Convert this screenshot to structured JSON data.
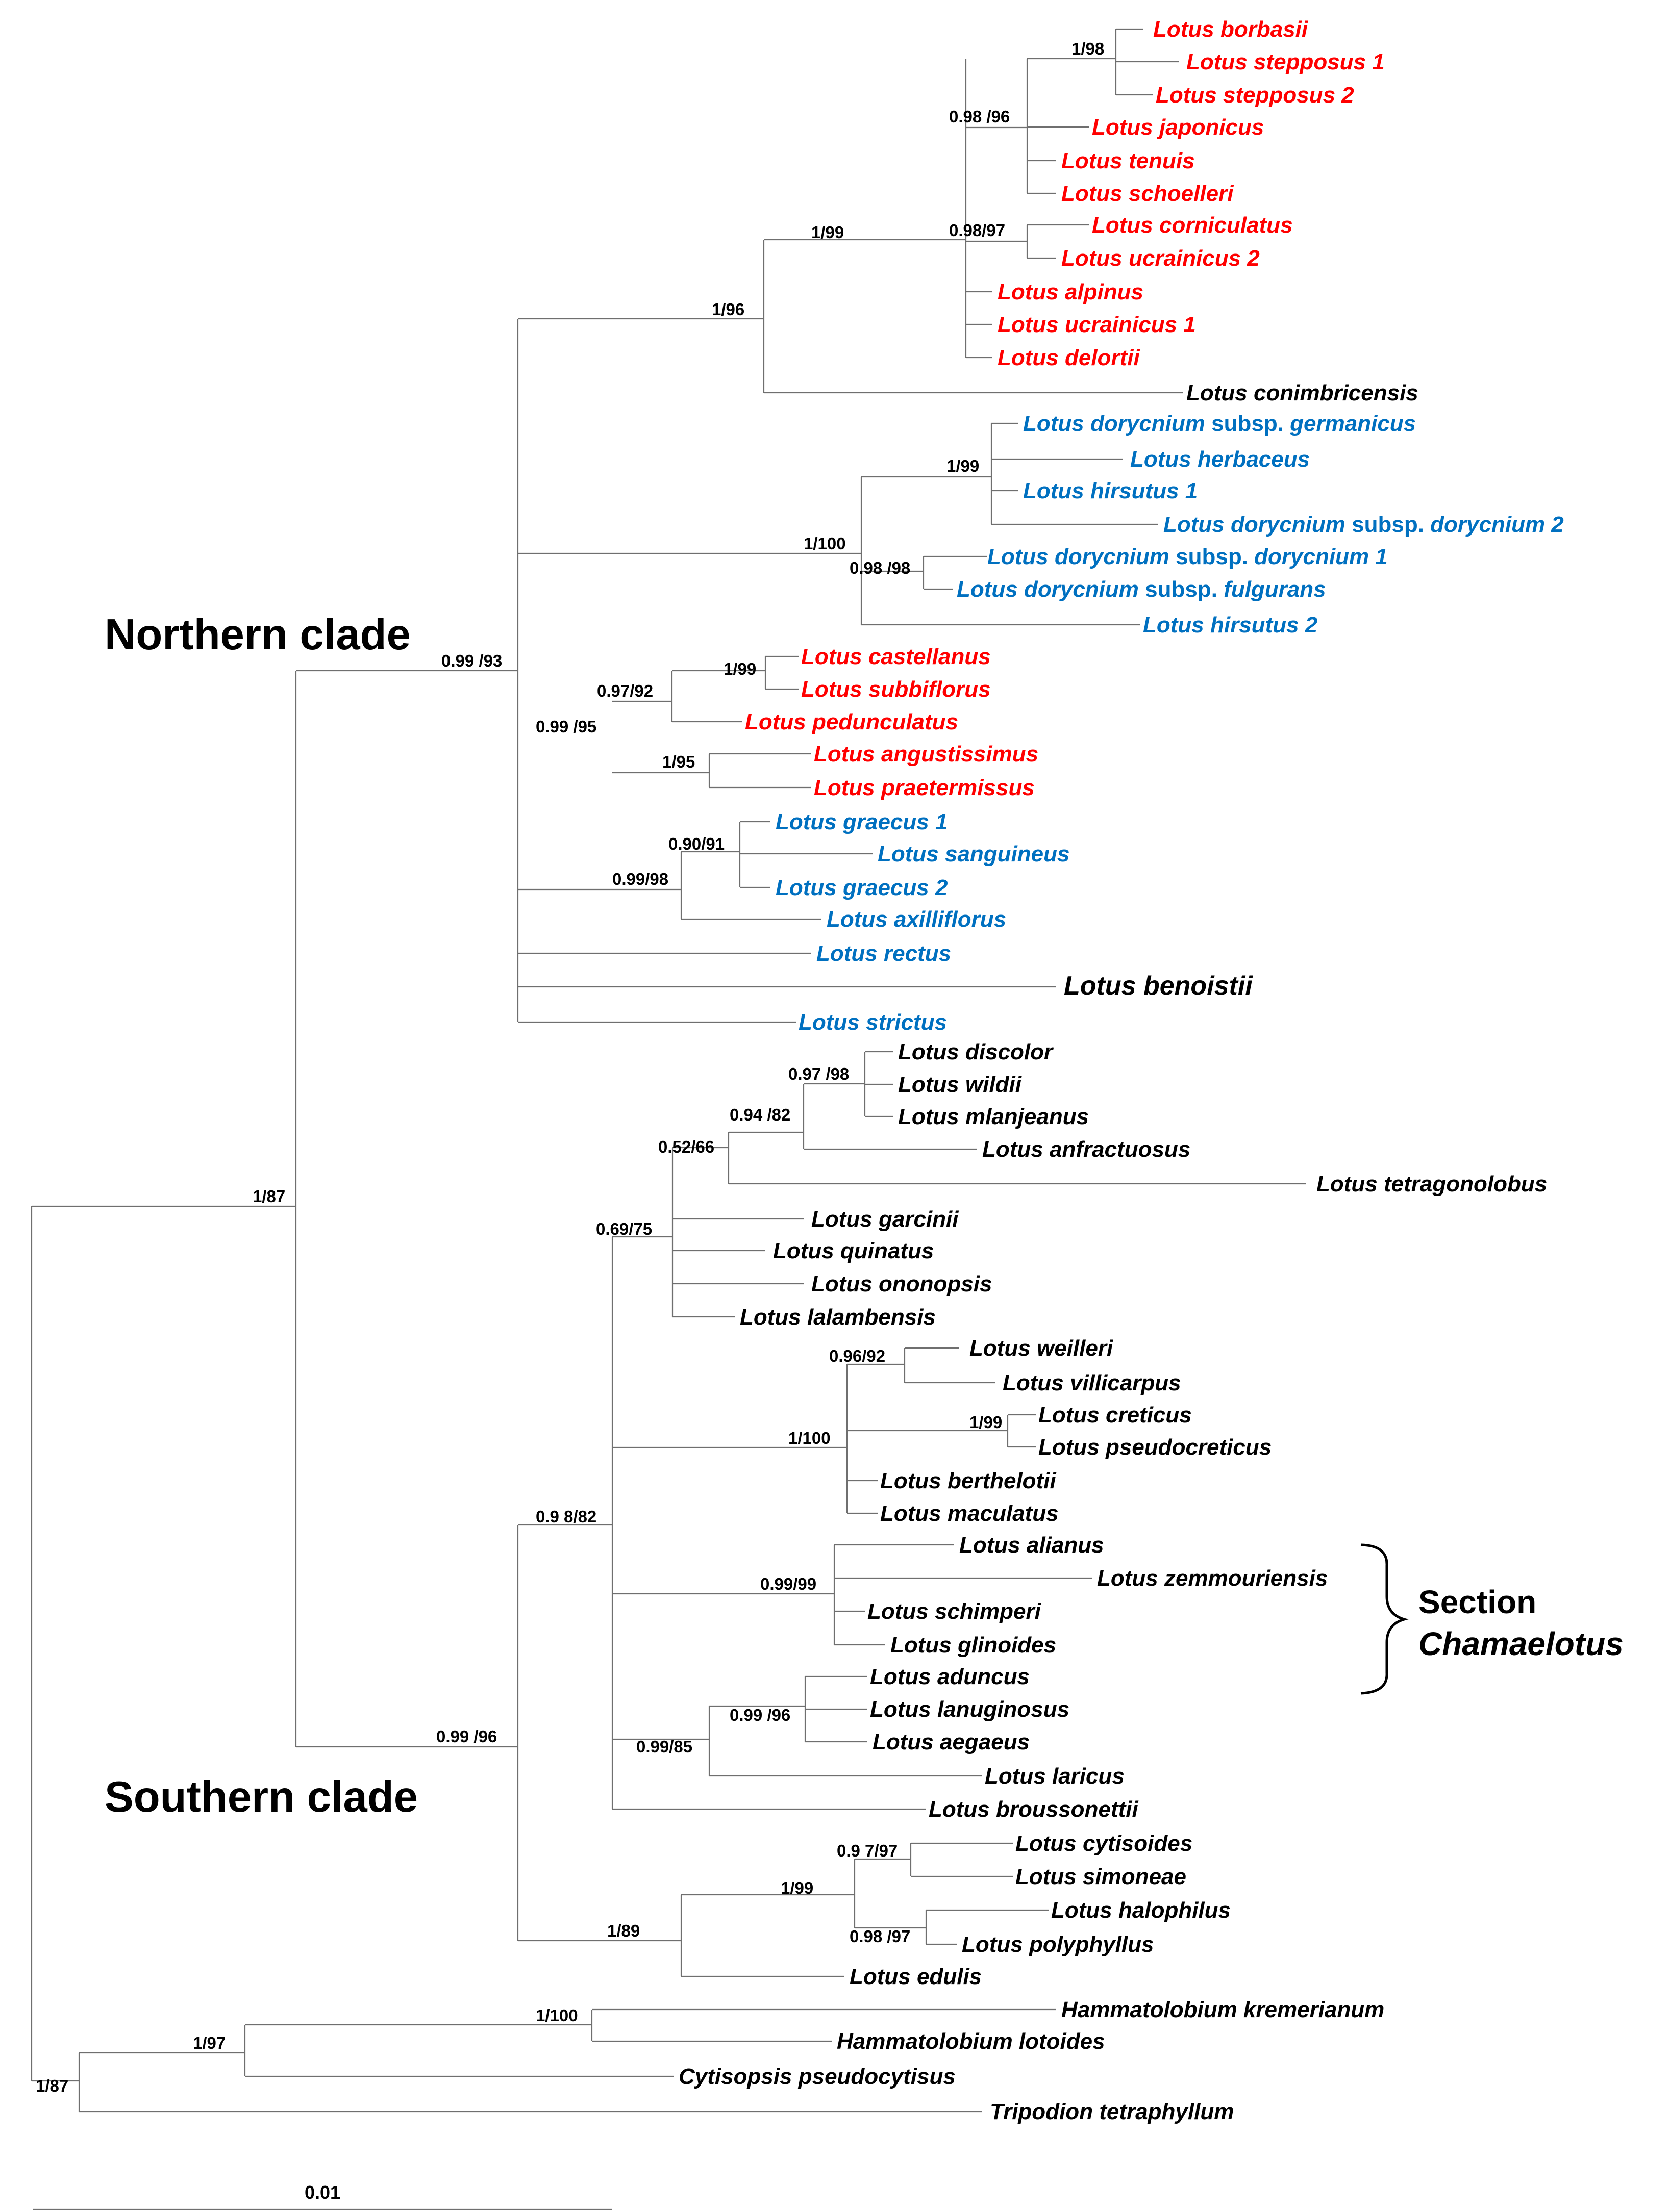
{
  "colors": {
    "red": "#ff0000",
    "blue": "#0070c0",
    "black": "#000000",
    "branch": "#6f6f6f"
  },
  "labels": {
    "northern": "Northern clade",
    "southern": "Southern clade",
    "section_line1": "Section",
    "section_line2": "Chamaelotus",
    "scale": "0.01"
  },
  "tips": [
    {
      "id": "borbasii",
      "genus": "Lotus",
      "rest": " borbasii",
      "color": "red"
    },
    {
      "id": "stepposus1",
      "genus": "Lotus",
      "rest": " stepposus 1",
      "color": "red"
    },
    {
      "id": "stepposus2",
      "genus": "Lotus",
      "rest": " stepposus 2",
      "color": "red"
    },
    {
      "id": "japonicus",
      "genus": "Lotus",
      "rest": " japonicus",
      "color": "red"
    },
    {
      "id": "tenuis",
      "genus": "Lotus",
      "rest": " tenuis",
      "color": "red"
    },
    {
      "id": "schoelleri",
      "genus": "Lotus",
      "rest": " schoelleri",
      "color": "red"
    },
    {
      "id": "corniculatus",
      "genus": "Lotus",
      "rest": " corniculatus",
      "color": "red"
    },
    {
      "id": "ucrainicus2",
      "genus": "Lotus",
      "rest": " ucrainicus 2",
      "color": "red"
    },
    {
      "id": "alpinus",
      "genus": "Lotus",
      "rest": " alpinus",
      "color": "red"
    },
    {
      "id": "ucrainicus1",
      "genus": "Lotus",
      "rest": " ucrainicus 1",
      "color": "red"
    },
    {
      "id": "delortii",
      "genus": "Lotus",
      "rest": " delortii",
      "color": "red"
    },
    {
      "id": "conimbricensis",
      "genus": "Lotus",
      "rest": " conimbricensis",
      "color": "black"
    },
    {
      "id": "dor_germanicus",
      "genus": "Lotus dorycnium",
      "mid": " subsp.",
      "rest": " germanicus",
      "color": "blue"
    },
    {
      "id": "herbaceus",
      "genus": "Lotus",
      "rest": " herbaceus",
      "color": "blue"
    },
    {
      "id": "hirsutus1",
      "genus": "Lotus",
      "rest": " hirsutus 1",
      "color": "blue"
    },
    {
      "id": "dor_dor2",
      "genus": "Lotus dorycnium",
      "mid": " subsp.",
      "rest": " dorycnium 2",
      "color": "blue"
    },
    {
      "id": "dor_dor1",
      "genus": "Lotus dorycnium",
      "mid": " subsp.",
      "rest": " dorycnium 1",
      "color": "blue"
    },
    {
      "id": "dor_fulgurans",
      "genus": "Lotus dorycnium",
      "mid": " subsp.",
      "rest": " fulgurans",
      "color": "blue"
    },
    {
      "id": "hirsutus2",
      "genus": "Lotus",
      "rest": " hirsutus 2",
      "color": "blue"
    },
    {
      "id": "castellanus",
      "genus": "Lotus",
      "rest": " castellanus",
      "color": "red"
    },
    {
      "id": "subbiflorus",
      "genus": "Lotus",
      "rest": " subbiflorus",
      "color": "red"
    },
    {
      "id": "pedunculatus",
      "genus": "Lotus",
      "rest": " pedunculatus",
      "color": "red"
    },
    {
      "id": "angustissimus",
      "genus": "Lotus",
      "rest": " angustissimus",
      "color": "red"
    },
    {
      "id": "praetermissus",
      "genus": "Lotus",
      "rest": " praetermissus",
      "color": "red"
    },
    {
      "id": "graecus1",
      "genus": "Lotus",
      "rest": " graecus 1",
      "color": "blue"
    },
    {
      "id": "sanguineus",
      "genus": "Lotus",
      "rest": " sanguineus",
      "color": "blue"
    },
    {
      "id": "graecus2",
      "genus": "Lotus",
      "rest": " graecus 2",
      "color": "blue"
    },
    {
      "id": "axilliflorus",
      "genus": "Lotus",
      "rest": " axilliflorus",
      "color": "blue"
    },
    {
      "id": "rectus",
      "genus": "Lotus",
      "rest": " rectus",
      "color": "blue"
    },
    {
      "id": "benoistii",
      "genus": "Lotus",
      "rest": " benoistii",
      "color": "black"
    },
    {
      "id": "strictus",
      "genus": "Lotus",
      "rest": " strictus",
      "color": "blue"
    },
    {
      "id": "discolor",
      "genus": "Lotus",
      "rest": " discolor",
      "color": "black"
    },
    {
      "id": "wildii",
      "genus": "Lotus",
      "rest": " wildii",
      "color": "black"
    },
    {
      "id": "mlanjeanus",
      "genus": "Lotus",
      "rest": " mlanjeanus",
      "color": "black"
    },
    {
      "id": "anfractuosus",
      "genus": "Lotus",
      "rest": " anfractuosus",
      "color": "black"
    },
    {
      "id": "tetragonolobus",
      "genus": "Lotus",
      "rest": " tetragonolobus",
      "color": "black"
    },
    {
      "id": "garcinii",
      "genus": "Lotus",
      "rest": " garcinii",
      "color": "black"
    },
    {
      "id": "quinatus",
      "genus": "Lotus",
      "rest": " quinatus",
      "color": "black"
    },
    {
      "id": "ononopsis",
      "genus": "Lotus",
      "rest": " ononopsis",
      "color": "black"
    },
    {
      "id": "lalambensis",
      "genus": "Lotus",
      "rest": " lalambensis",
      "color": "black"
    },
    {
      "id": "weilleri",
      "genus": "Lotus",
      "rest": " weilleri",
      "color": "black"
    },
    {
      "id": "villicarpus",
      "genus": "Lotus",
      "rest": " villicarpus",
      "color": "black"
    },
    {
      "id": "creticus",
      "genus": "Lotus",
      "rest": " creticus",
      "color": "black"
    },
    {
      "id": "pseudocreticus",
      "genus": "Lotus",
      "rest": " pseudocreticus",
      "color": "black"
    },
    {
      "id": "berthelotii",
      "genus": "Lotus",
      "rest": " berthelotii",
      "color": "black"
    },
    {
      "id": "maculatus",
      "genus": "Lotus",
      "rest": " maculatus",
      "color": "black"
    },
    {
      "id": "alianus",
      "genus": "Lotus",
      "rest": " alianus",
      "color": "black"
    },
    {
      "id": "zemmouriensis",
      "genus": "Lotus",
      "rest": " zemmouriensis",
      "color": "black"
    },
    {
      "id": "schimperi",
      "genus": "Lotus",
      "rest": " schimperi",
      "color": "black"
    },
    {
      "id": "glinoides",
      "genus": "Lotus",
      "rest": " glinoides",
      "color": "black"
    },
    {
      "id": "aduncus",
      "genus": "Lotus",
      "rest": " aduncus",
      "color": "black"
    },
    {
      "id": "lanuginosus",
      "genus": "Lotus",
      "rest": " lanuginosus",
      "color": "black"
    },
    {
      "id": "aegaeus",
      "genus": "Lotus",
      "rest": " aegaeus",
      "color": "black"
    },
    {
      "id": "laricus",
      "genus": "Lotus",
      "rest": " laricus",
      "color": "black"
    },
    {
      "id": "broussonettii",
      "genus": "Lotus",
      "rest": " broussonettii",
      "color": "black"
    },
    {
      "id": "cytisoides",
      "genus": "Lotus",
      "rest": " cytisoides",
      "color": "black"
    },
    {
      "id": "simoneae",
      "genus": "Lotus",
      "rest": " simoneae",
      "color": "black"
    },
    {
      "id": "halophilus",
      "genus": "Lotus",
      "rest": " halophilus",
      "color": "black"
    },
    {
      "id": "polyphyllus",
      "genus": "Lotus",
      "rest": " polyphyllus",
      "color": "black"
    },
    {
      "id": "edulis",
      "genus": "Lotus",
      "rest": " edulis",
      "color": "black"
    },
    {
      "id": "hkremerianum",
      "genus": "Hammatolobium",
      "rest": " kremerianum",
      "color": "black"
    },
    {
      "id": "hlotoides",
      "genus": "Hammatolobium",
      "rest": " lotoides",
      "color": "black"
    },
    {
      "id": "cytisopsis",
      "genus": "Cytisopsis",
      "rest": " pseudocytisus",
      "color": "black"
    },
    {
      "id": "tripodion",
      "genus": "Tripodion",
      "rest": " tetraphyllum",
      "color": "black"
    }
  ],
  "supports": [
    {
      "id": "s_borb_step",
      "text": "1/98"
    },
    {
      "id": "s_0_98_96",
      "text": "0.98 /96"
    },
    {
      "id": "s_1_99a",
      "text": "1/99"
    },
    {
      "id": "s_0_98_97",
      "text": "0.98/97"
    },
    {
      "id": "s_1_96",
      "text": "1/96"
    },
    {
      "id": "s_1_99b",
      "text": "1/99"
    },
    {
      "id": "s_1_100a",
      "text": "1/100"
    },
    {
      "id": "s_0_98_98a",
      "text": "0.98 /98"
    },
    {
      "id": "s_0_99_93",
      "text": "0.99 /93"
    },
    {
      "id": "s_1_99c",
      "text": "1/99"
    },
    {
      "id": "s_0_97_92",
      "text": "0.97/92"
    },
    {
      "id": "s_0_99_95",
      "text": "0.99 /95"
    },
    {
      "id": "s_1_95",
      "text": "1/95"
    },
    {
      "id": "s_0_90_91",
      "text": "0.90/91"
    },
    {
      "id": "s_0_99_98",
      "text": "0.99/98"
    },
    {
      "id": "s_0_97_98",
      "text": "0.97 /98"
    },
    {
      "id": "s_0_94_82",
      "text": "0.94 /82"
    },
    {
      "id": "s_0_52_66",
      "text": "0.52/66"
    },
    {
      "id": "s_0_69_75",
      "text": "0.69/75"
    },
    {
      "id": "s_1_87a",
      "text": "1/87"
    },
    {
      "id": "s_0_96_92",
      "text": "0.96/92"
    },
    {
      "id": "s_1_99d",
      "text": "1/99"
    },
    {
      "id": "s_1_100b",
      "text": "1/100"
    },
    {
      "id": "s_0_98_82",
      "text": "0.9 8/82"
    },
    {
      "id": "s_0_99_99",
      "text": "0.99/99"
    },
    {
      "id": "s_0_99_96a",
      "text": "0.99 /96"
    },
    {
      "id": "s_0_99_85",
      "text": "0.99/85"
    },
    {
      "id": "s_0_99_96b",
      "text": "0.99 /96"
    },
    {
      "id": "s_0_97_97",
      "text": "0.9 7/97"
    },
    {
      "id": "s_1_99e",
      "text": "1/99"
    },
    {
      "id": "s_0_98_97b",
      "text": "0.98 /97"
    },
    {
      "id": "s_1_89",
      "text": "1/89"
    },
    {
      "id": "s_1_100c",
      "text": "1/100"
    },
    {
      "id": "s_1_97",
      "text": "1/97"
    },
    {
      "id": "s_1_87b",
      "text": "1/87"
    }
  ]
}
